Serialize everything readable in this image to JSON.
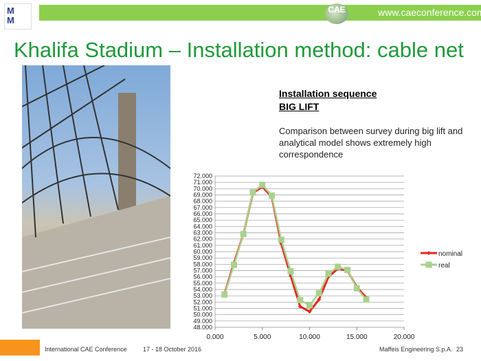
{
  "header": {
    "logo_text": "MM",
    "url": "www.caeconference.com",
    "conference_logo": "CAE"
  },
  "slide": {
    "title": "Khalifa Stadium – Installation method: cable net",
    "heading1": "Installation sequence",
    "heading2": "BIG LIFT",
    "description": "Comparison between survey during big lift and analytical model shows extremely high correspondence"
  },
  "chart_data": {
    "type": "line",
    "title": "",
    "xlabel": "",
    "ylabel": "",
    "xlim": [
      0,
      20
    ],
    "ylim": [
      48,
      72
    ],
    "grid": "horizontal",
    "legend": "right",
    "x_ticks": [
      "0.000",
      "5.000",
      "10.000",
      "15.000",
      "20.000"
    ],
    "y_ticks": [
      "48.000",
      "49.000",
      "50.000",
      "51.000",
      "52.000",
      "53.000",
      "54.000",
      "55.000",
      "56.000",
      "57.000",
      "58.000",
      "59.000",
      "60.000",
      "61.000",
      "62.000",
      "63.000",
      "64.000",
      "65.000",
      "66.000",
      "67.000",
      "68.000",
      "69.000",
      "70.000",
      "71.000",
      "72.000"
    ],
    "x": [
      1,
      2,
      3,
      4,
      5,
      6,
      7,
      8,
      9,
      10,
      11,
      12,
      13,
      14,
      15,
      16
    ],
    "series": [
      {
        "name": "nominal",
        "color": "#e8251b",
        "values": [
          53.3,
          58.2,
          62.8,
          69.3,
          70.3,
          68.7,
          61.3,
          56.2,
          51.3,
          50.5,
          52.4,
          56.0,
          57.3,
          57.0,
          54.4,
          52.7
        ]
      },
      {
        "name": "real",
        "color": "#a9d18e",
        "values": [
          53.2,
          57.9,
          62.8,
          69.4,
          70.6,
          68.9,
          61.9,
          56.9,
          52.3,
          51.5,
          53.4,
          56.5,
          57.6,
          57.1,
          54.2,
          52.4
        ]
      }
    ]
  },
  "footer": {
    "conference": "International CAE Conference",
    "dates": "17 - 18 October 2016",
    "company": "Maffeis Engineering S.p.A.",
    "page": "23",
    "accent": "#f7941d"
  }
}
